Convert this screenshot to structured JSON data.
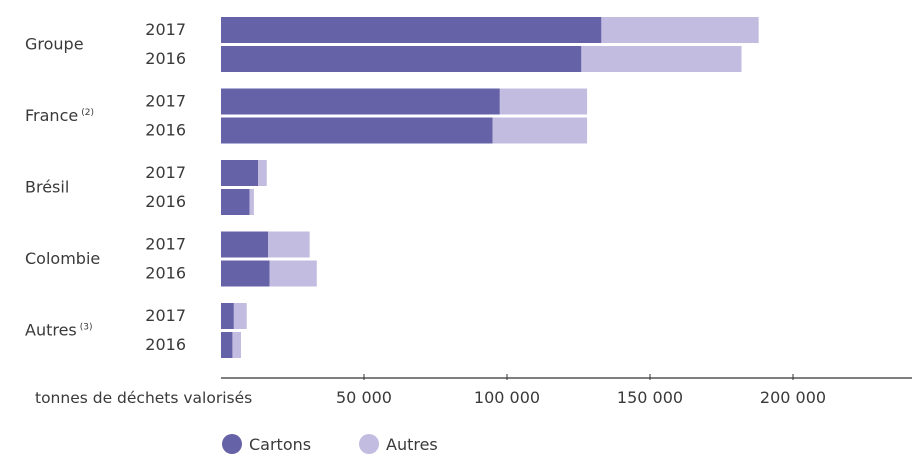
{
  "chart_data": {
    "type": "bar",
    "orientation": "horizontal",
    "stacked": true,
    "groups": [
      {
        "label": "Groupe",
        "superscript": ""
      },
      {
        "label": "France",
        "superscript": "(2)"
      },
      {
        "label": "Brésil",
        "superscript": ""
      },
      {
        "label": "Colombie",
        "superscript": ""
      },
      {
        "label": "Autres",
        "superscript": "(3)"
      }
    ],
    "years": [
      "2017",
      "2016"
    ],
    "series": [
      {
        "name": "Cartons",
        "color": "#6562a8",
        "values": [
          [
            133000,
            126000
          ],
          [
            97500,
            95000
          ],
          [
            13000,
            10000
          ],
          [
            16500,
            17000
          ],
          [
            4500,
            4000
          ]
        ]
      },
      {
        "name": "Autres",
        "color": "#c2bde0",
        "values": [
          [
            55000,
            56000
          ],
          [
            30500,
            33000
          ],
          [
            3000,
            1500
          ],
          [
            14500,
            16500
          ],
          [
            4500,
            3000
          ]
        ]
      }
    ],
    "xlabel": "tonnes de déchets valorisés",
    "xlim": [
      0,
      240000
    ],
    "xticks": [
      50000,
      100000,
      150000,
      200000
    ],
    "xtick_labels": [
      "50 000",
      "100 000",
      "150 000",
      "200 000"
    ],
    "grid": false,
    "legend_position": "bottom"
  }
}
